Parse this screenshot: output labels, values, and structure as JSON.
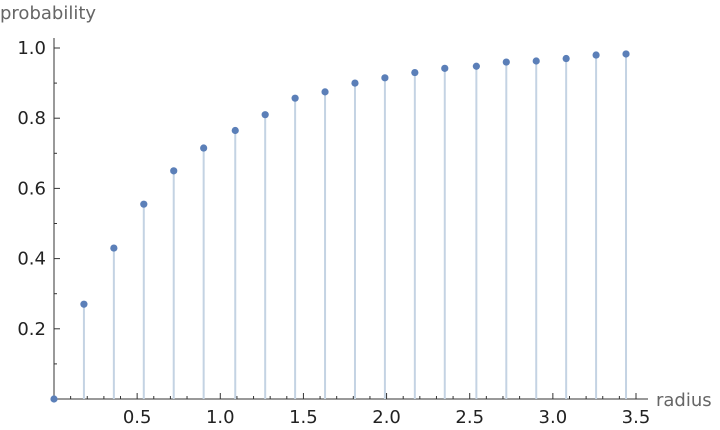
{
  "chart_data": {
    "type": "scatter",
    "style": "stem",
    "xlabel": "radius",
    "ylabel": "probability",
    "xlim": [
      0,
      3.5
    ],
    "ylim": [
      0,
      1.0
    ],
    "xticks": [
      0.5,
      1.0,
      1.5,
      2.0,
      2.5,
      3.0,
      3.5
    ],
    "xtick_labels": [
      "0.5",
      "1.0",
      "1.5",
      "2.0",
      "2.5",
      "3.0",
      "3.5"
    ],
    "yticks": [
      0.2,
      0.4,
      0.6,
      0.8,
      1.0
    ],
    "ytick_labels": [
      "0.2",
      "0.4",
      "0.6",
      "0.8",
      "1.0"
    ],
    "x": [
      0.0,
      0.18,
      0.36,
      0.54,
      0.72,
      0.9,
      1.09,
      1.27,
      1.45,
      1.63,
      1.81,
      1.99,
      2.17,
      2.35,
      2.54,
      2.72,
      2.9,
      3.08,
      3.26,
      3.44
    ],
    "y": [
      0.0,
      0.27,
      0.43,
      0.555,
      0.65,
      0.715,
      0.765,
      0.81,
      0.857,
      0.875,
      0.9,
      0.915,
      0.93,
      0.942,
      0.948,
      0.96,
      0.963,
      0.97,
      0.98,
      0.983
    ],
    "grid": false,
    "colors": {
      "marker": "#5b7fb8",
      "stem": "#c4d3e3",
      "axis": "#333333"
    }
  }
}
